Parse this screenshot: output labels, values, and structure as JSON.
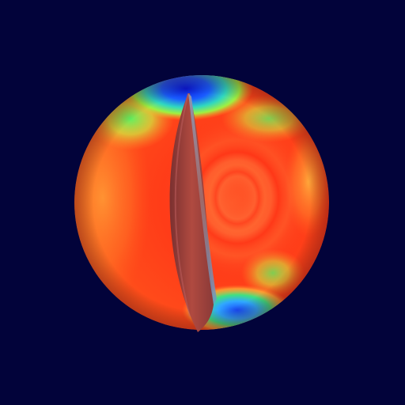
{
  "scene": {
    "background_color": "#02033a",
    "subject": "sphere-with-cutaway",
    "colors": {
      "hot": "#ff2a10",
      "warm": "#ff6a2a",
      "mid": "#ffd23a",
      "cool": "#30e070",
      "cold": "#1a4cff",
      "coldest": "#1010c8",
      "cut_face": "#a03a38",
      "cut_edge": "#6a8ab0"
    }
  }
}
